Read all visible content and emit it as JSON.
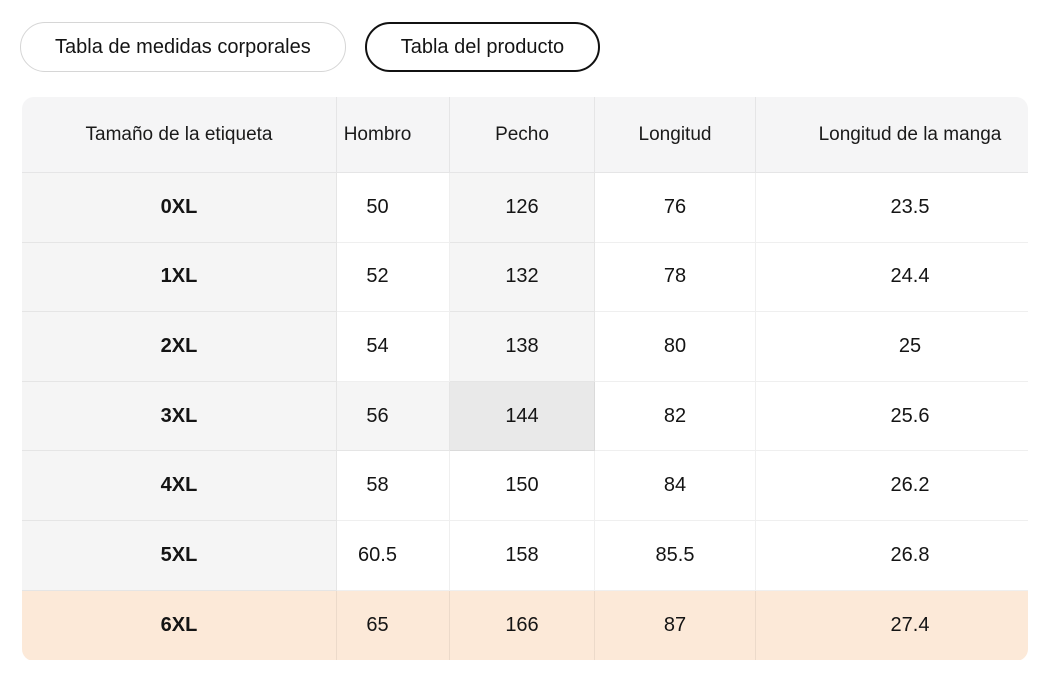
{
  "tabs": [
    {
      "label": "Tabla de medidas corporales",
      "selected": false
    },
    {
      "label": "Tabla del producto",
      "selected": true
    }
  ],
  "table": {
    "columns": [
      "Tamaño de la etiqueta",
      "Hombro",
      "Pecho",
      "Longitud",
      "Longitud de la manga"
    ],
    "rows": [
      {
        "size": "0XL",
        "values": [
          "50",
          "126",
          "76",
          "23.5"
        ]
      },
      {
        "size": "1XL",
        "values": [
          "52",
          "132",
          "78",
          "24.4"
        ]
      },
      {
        "size": "2XL",
        "values": [
          "54",
          "138",
          "80",
          "25"
        ]
      },
      {
        "size": "3XL",
        "values": [
          "56",
          "144",
          "82",
          "25.6"
        ]
      },
      {
        "size": "4XL",
        "values": [
          "58",
          "150",
          "84",
          "26.2"
        ]
      },
      {
        "size": "5XL",
        "values": [
          "60.5",
          "158",
          "85.5",
          "26.8"
        ]
      },
      {
        "size": "6XL",
        "values": [
          "65",
          "166",
          "87",
          "27.4"
        ]
      }
    ],
    "selected_row": "6XL",
    "hover_cell": {
      "row": "3XL",
      "column": "Pecho"
    }
  },
  "colors": {
    "header_bg": "#f5f5f6",
    "sticky_column_bg": "#f5f5f5",
    "hover_highlight": "#f5f5f5",
    "hover_cell": "#e9e9e9",
    "selected_row_bg": "#fce9d8",
    "selected_tab_border": "#111111",
    "unselected_tab_border": "#d6d6d6",
    "text": "#141414"
  }
}
